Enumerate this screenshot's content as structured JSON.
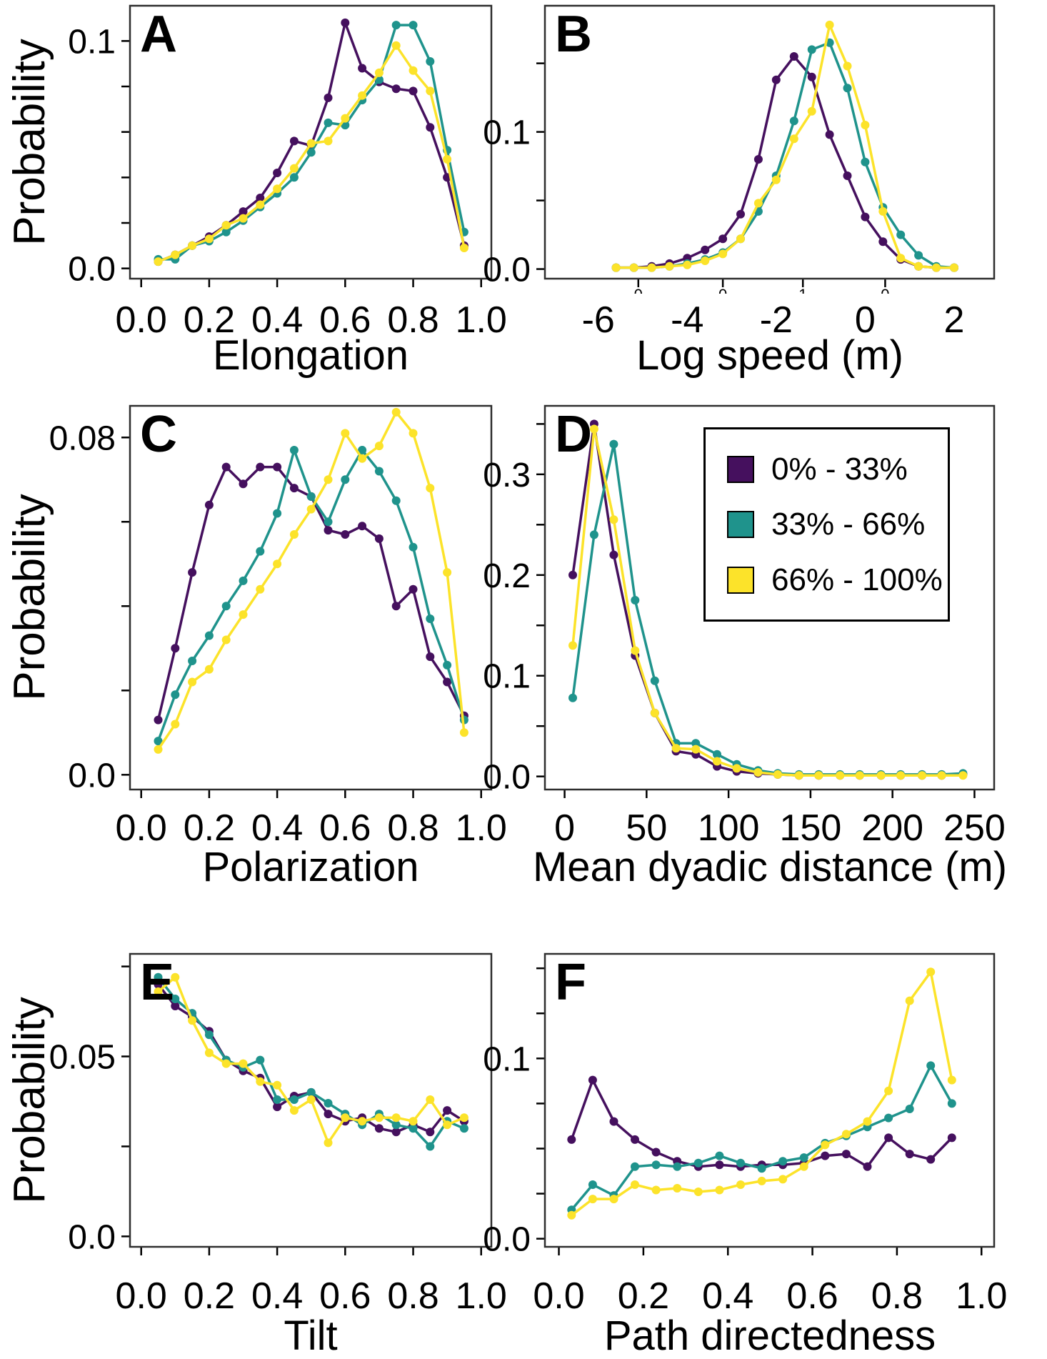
{
  "figure": {
    "description": "Six-panel probability distribution figure comparing three percentile groups",
    "background": "#ffffff",
    "box_border_color": "#2e2e2e",
    "text_color": "#000000"
  },
  "chart_data": {
    "type": "line",
    "ylabel": "Probability",
    "colors": {
      "purple": "#45105E",
      "teal": "#1F938C",
      "yellow": "#FCE32A"
    },
    "legend": {
      "position": "inside panel D, upper right",
      "entries": [
        {
          "color_key": "purple",
          "label": "0% - 33%"
        },
        {
          "color_key": "teal",
          "label": "33% - 66%"
        },
        {
          "color_key": "yellow",
          "label": "66% - 100%"
        }
      ]
    },
    "panels": [
      {
        "id": "A",
        "letter": "A",
        "xlabel": "Elongation",
        "x_range": [
          -0.033,
          1.03
        ],
        "y_range": [
          -0.0045,
          0.1155
        ],
        "x_ticks": [
          {
            "v": 0.0,
            "label": "0.0"
          },
          {
            "v": 0.2,
            "label": "0.2"
          },
          {
            "v": 0.4,
            "label": "0.4"
          },
          {
            "v": 0.6,
            "label": "0.6"
          },
          {
            "v": 0.8,
            "label": "0.8"
          },
          {
            "v": 1.0,
            "label": "1.0"
          }
        ],
        "y_ticks": [
          {
            "v": 0.0,
            "label": "0.0"
          },
          {
            "v": 0.02
          },
          {
            "v": 0.04
          },
          {
            "v": 0.06
          },
          {
            "v": 0.08
          },
          {
            "v": 0.1,
            "label": "0.1"
          }
        ],
        "x": [
          0.05,
          0.1,
          0.15,
          0.2,
          0.25,
          0.3,
          0.35,
          0.4,
          0.45,
          0.5,
          0.55,
          0.6,
          0.65,
          0.7,
          0.75,
          0.8,
          0.85,
          0.9,
          0.95
        ],
        "series": {
          "purple": [
            0.003,
            0.006,
            0.01,
            0.014,
            0.019,
            0.025,
            0.031,
            0.042,
            0.056,
            0.054,
            0.075,
            0.108,
            0.088,
            0.082,
            0.079,
            0.078,
            0.062,
            0.04,
            0.01
          ],
          "teal": [
            0.004,
            0.004,
            0.01,
            0.012,
            0.016,
            0.021,
            0.027,
            0.033,
            0.04,
            0.051,
            0.064,
            0.063,
            0.074,
            0.083,
            0.107,
            0.107,
            0.091,
            0.052,
            0.016
          ],
          "yellow": [
            0.003,
            0.006,
            0.01,
            0.013,
            0.019,
            0.022,
            0.028,
            0.035,
            0.044,
            0.055,
            0.056,
            0.066,
            0.076,
            0.086,
            0.098,
            0.087,
            0.078,
            0.048,
            0.009
          ]
        }
      },
      {
        "id": "B",
        "letter": "B",
        "xlabel": "Log speed (m)",
        "x_range": [
          -7.2,
          2.9
        ],
        "y_range": [
          -0.007,
          0.192
        ],
        "x_ticks": [
          {
            "v": -6,
            "label": "-6",
            "no_tick": true
          },
          {
            "v": -4,
            "label": "-4",
            "no_tick": true
          },
          {
            "v": -2,
            "label": "-2",
            "no_tick": true
          },
          {
            "v": 0,
            "label": "0",
            "no_tick": true
          },
          {
            "v": 2,
            "label": "2",
            "no_tick": true
          }
        ],
        "sub_ticks": [
          {
            "v": -5.1,
            "glyph": "0"
          },
          {
            "v": -3.2,
            "glyph": "0"
          },
          {
            "v": -1.4,
            "glyph": "1"
          },
          {
            "v": 0.45,
            "glyph": "0"
          }
        ],
        "y_ticks": [
          {
            "v": 0.0,
            "label": "0.0"
          },
          {
            "v": 0.05
          },
          {
            "v": 0.1,
            "label": "0.1"
          },
          {
            "v": 0.15
          }
        ],
        "x": [
          -5.6,
          -5.2,
          -4.8,
          -4.4,
          -4.0,
          -3.6,
          -3.2,
          -2.8,
          -2.4,
          -2.0,
          -1.6,
          -1.2,
          -0.8,
          -0.4,
          0.0,
          0.4,
          0.8,
          1.2,
          1.6,
          2.0
        ],
        "series": {
          "purple": [
            0.001,
            0.001,
            0.002,
            0.004,
            0.008,
            0.014,
            0.022,
            0.04,
            0.08,
            0.138,
            0.155,
            0.14,
            0.098,
            0.068,
            0.038,
            0.02,
            0.007,
            0.002,
            0.001,
            0.001
          ],
          "teal": [
            0.001,
            0.001,
            0.001,
            0.002,
            0.004,
            0.007,
            0.012,
            0.022,
            0.042,
            0.068,
            0.108,
            0.16,
            0.165,
            0.132,
            0.078,
            0.045,
            0.025,
            0.01,
            0.002,
            0.001
          ],
          "yellow": [
            0.001,
            0.001,
            0.001,
            0.002,
            0.003,
            0.006,
            0.011,
            0.022,
            0.048,
            0.065,
            0.095,
            0.115,
            0.178,
            0.148,
            0.105,
            0.042,
            0.008,
            0.002,
            0.001,
            0.001
          ]
        }
      },
      {
        "id": "C",
        "letter": "C",
        "xlabel": "Polarization",
        "x_range": [
          -0.033,
          1.03
        ],
        "y_range": [
          -0.0035,
          0.0875
        ],
        "x_ticks": [
          {
            "v": 0.0,
            "label": "0.0"
          },
          {
            "v": 0.2,
            "label": "0.2"
          },
          {
            "v": 0.4,
            "label": "0.4"
          },
          {
            "v": 0.6,
            "label": "0.6"
          },
          {
            "v": 0.8,
            "label": "0.8"
          },
          {
            "v": 1.0,
            "label": "1.0"
          }
        ],
        "y_ticks": [
          {
            "v": 0.0,
            "label": "0.0"
          },
          {
            "v": 0.02
          },
          {
            "v": 0.04
          },
          {
            "v": 0.06
          },
          {
            "v": 0.08,
            "label": "0.08"
          }
        ],
        "x": [
          0.05,
          0.1,
          0.15,
          0.2,
          0.25,
          0.3,
          0.35,
          0.4,
          0.45,
          0.5,
          0.55,
          0.6,
          0.65,
          0.7,
          0.75,
          0.8,
          0.85,
          0.9,
          0.95
        ],
        "series": {
          "purple": [
            0.013,
            0.03,
            0.048,
            0.064,
            0.073,
            0.069,
            0.073,
            0.073,
            0.068,
            0.066,
            0.058,
            0.057,
            0.059,
            0.056,
            0.04,
            0.044,
            0.028,
            0.022,
            0.014
          ],
          "teal": [
            0.008,
            0.019,
            0.027,
            0.033,
            0.04,
            0.046,
            0.053,
            0.062,
            0.077,
            0.066,
            0.06,
            0.07,
            0.077,
            0.072,
            0.065,
            0.054,
            0.037,
            0.026,
            0.013
          ],
          "yellow": [
            0.006,
            0.012,
            0.022,
            0.025,
            0.032,
            0.038,
            0.044,
            0.05,
            0.057,
            0.063,
            0.07,
            0.081,
            0.075,
            0.078,
            0.086,
            0.081,
            0.068,
            0.048,
            0.01
          ]
        }
      },
      {
        "id": "D",
        "letter": "D",
        "xlabel": "Mean dyadic distance (m)",
        "x_range": [
          -12,
          262
        ],
        "y_range": [
          -0.013,
          0.368
        ],
        "x_ticks": [
          {
            "v": 0,
            "label": "0"
          },
          {
            "v": 50,
            "label": "50"
          },
          {
            "v": 100,
            "label": "100"
          },
          {
            "v": 150,
            "label": "150"
          },
          {
            "v": 200,
            "label": "200"
          },
          {
            "v": 250,
            "label": "250"
          }
        ],
        "y_ticks": [
          {
            "v": 0.0,
            "label": "0.0"
          },
          {
            "v": 0.05
          },
          {
            "v": 0.1,
            "label": "0.1"
          },
          {
            "v": 0.15
          },
          {
            "v": 0.2,
            "label": "0.2"
          },
          {
            "v": 0.25
          },
          {
            "v": 0.3,
            "label": "0.3"
          },
          {
            "v": 0.35
          }
        ],
        "x": [
          5,
          18,
          30,
          43,
          55,
          68,
          80,
          93,
          105,
          118,
          130,
          143,
          155,
          168,
          180,
          193,
          205,
          218,
          230,
          243
        ],
        "series": {
          "purple": [
            0.2,
            0.35,
            0.22,
            0.12,
            0.063,
            0.025,
            0.022,
            0.01,
            0.005,
            0.003,
            0.002,
            0.001,
            0.001,
            0.001,
            0.001,
            0.001,
            0.001,
            0.001,
            0.001,
            0.002
          ],
          "teal": [
            0.078,
            0.24,
            0.33,
            0.175,
            0.095,
            0.033,
            0.033,
            0.022,
            0.012,
            0.006,
            0.003,
            0.002,
            0.002,
            0.002,
            0.002,
            0.002,
            0.002,
            0.002,
            0.002,
            0.003
          ],
          "yellow": [
            0.13,
            0.345,
            0.255,
            0.125,
            0.063,
            0.028,
            0.027,
            0.015,
            0.008,
            0.004,
            0.002,
            0.001,
            0.001,
            0.001,
            0.001,
            0.001,
            0.001,
            0.001,
            0.001,
            0.001
          ]
        }
      },
      {
        "id": "E",
        "letter": "E",
        "xlabel": "Tilt",
        "x_range": [
          -0.033,
          1.03
        ],
        "y_range": [
          -0.0029,
          0.0785
        ],
        "x_ticks": [
          {
            "v": 0.0,
            "label": "0.0"
          },
          {
            "v": 0.2,
            "label": "0.2"
          },
          {
            "v": 0.4,
            "label": "0.4"
          },
          {
            "v": 0.6,
            "label": "0.6"
          },
          {
            "v": 0.8,
            "label": "0.8"
          },
          {
            "v": 1.0,
            "label": "1.0"
          }
        ],
        "y_ticks": [
          {
            "v": 0.0,
            "label": "0.0"
          },
          {
            "v": 0.025
          },
          {
            "v": 0.05,
            "label": "0.05"
          },
          {
            "v": 0.075
          }
        ],
        "x": [
          0.05,
          0.1,
          0.15,
          0.2,
          0.25,
          0.3,
          0.35,
          0.4,
          0.45,
          0.5,
          0.55,
          0.6,
          0.65,
          0.7,
          0.75,
          0.8,
          0.85,
          0.9,
          0.95
        ],
        "series": {
          "purple": [
            0.07,
            0.064,
            0.061,
            0.057,
            0.049,
            0.046,
            0.044,
            0.036,
            0.039,
            0.04,
            0.034,
            0.032,
            0.033,
            0.03,
            0.029,
            0.031,
            0.029,
            0.035,
            0.032
          ],
          "teal": [
            0.072,
            0.066,
            0.062,
            0.056,
            0.049,
            0.047,
            0.049,
            0.038,
            0.038,
            0.04,
            0.037,
            0.034,
            0.031,
            0.034,
            0.031,
            0.03,
            0.025,
            0.032,
            0.03
          ],
          "yellow": [
            0.068,
            0.072,
            0.06,
            0.051,
            0.048,
            0.048,
            0.043,
            0.042,
            0.035,
            0.038,
            0.026,
            0.033,
            0.032,
            0.033,
            0.033,
            0.032,
            0.038,
            0.031,
            0.033
          ]
        }
      },
      {
        "id": "F",
        "letter": "F",
        "xlabel": "Path directedness",
        "x_range": [
          -0.033,
          1.03
        ],
        "y_range": [
          -0.0045,
          0.158
        ],
        "x_ticks": [
          {
            "v": 0.0,
            "label": "0.0"
          },
          {
            "v": 0.2,
            "label": "0.2"
          },
          {
            "v": 0.4,
            "label": "0.4"
          },
          {
            "v": 0.6,
            "label": "0.6"
          },
          {
            "v": 0.8,
            "label": "0.8"
          },
          {
            "v": 1.0,
            "label": "1.0"
          }
        ],
        "y_ticks": [
          {
            "v": 0.0,
            "label": "0.0"
          },
          {
            "v": 0.025
          },
          {
            "v": 0.05
          },
          {
            "v": 0.075
          },
          {
            "v": 0.1,
            "label": "0.1"
          },
          {
            "v": 0.125
          },
          {
            "v": 0.15
          }
        ],
        "x": [
          0.03,
          0.08,
          0.13,
          0.18,
          0.23,
          0.28,
          0.33,
          0.38,
          0.43,
          0.48,
          0.53,
          0.58,
          0.63,
          0.68,
          0.73,
          0.78,
          0.83,
          0.88,
          0.93
        ],
        "series": {
          "purple": [
            0.055,
            0.088,
            0.065,
            0.055,
            0.048,
            0.043,
            0.04,
            0.041,
            0.04,
            0.041,
            0.041,
            0.042,
            0.046,
            0.047,
            0.04,
            0.056,
            0.047,
            0.044,
            0.056
          ],
          "teal": [
            0.016,
            0.03,
            0.024,
            0.04,
            0.041,
            0.04,
            0.042,
            0.046,
            0.042,
            0.039,
            0.043,
            0.045,
            0.053,
            0.057,
            0.062,
            0.067,
            0.072,
            0.096,
            0.075
          ],
          "yellow": [
            0.013,
            0.022,
            0.022,
            0.03,
            0.027,
            0.028,
            0.026,
            0.027,
            0.03,
            0.032,
            0.033,
            0.04,
            0.052,
            0.058,
            0.065,
            0.082,
            0.132,
            0.148,
            0.088
          ]
        }
      }
    ]
  }
}
